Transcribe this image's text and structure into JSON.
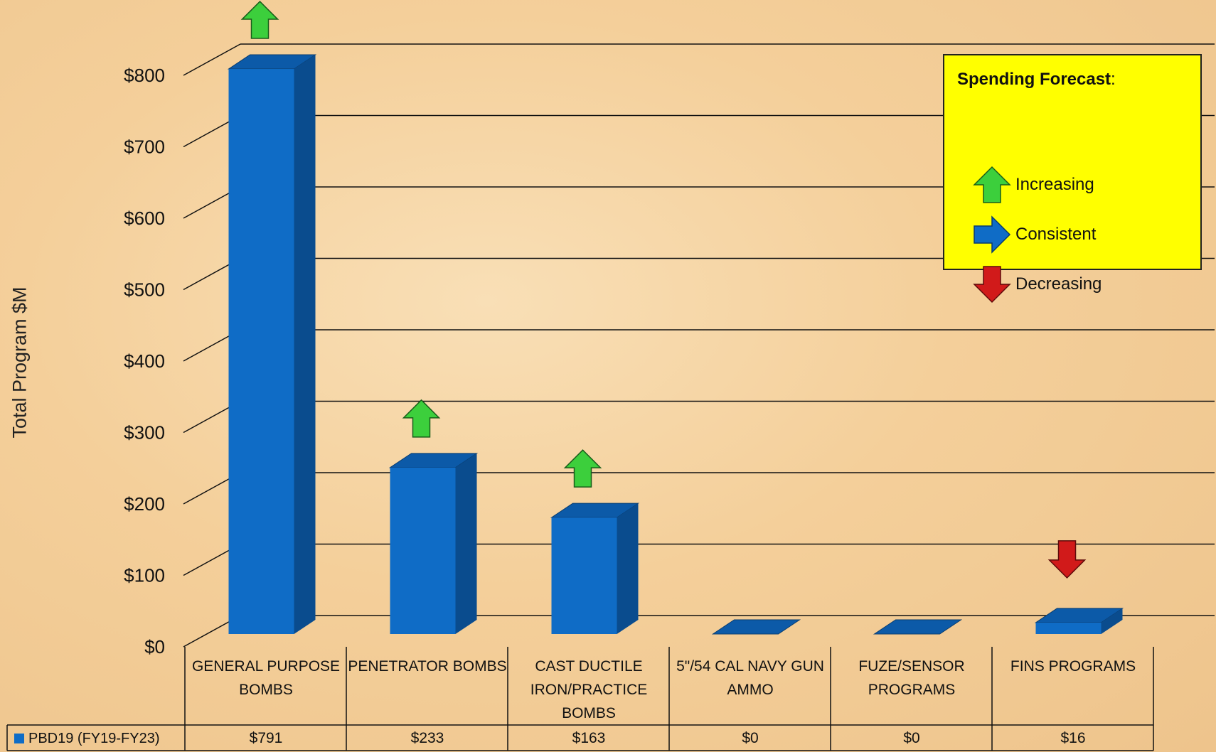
{
  "chart_data": {
    "type": "bar",
    "ylabel": "Total Program $M",
    "ylim": [
      0,
      800
    ],
    "y_ticks": [
      "$0",
      "$100",
      "$200",
      "$300",
      "$400",
      "$500",
      "$600",
      "$700",
      "$800"
    ],
    "grid": true,
    "categories": [
      "GENERAL PURPOSE BOMBS",
      "PENETRATOR BOMBS",
      "CAST DUCTILE IRON/PRACTICE BOMBS",
      "5\"/54 CAL NAVY GUN AMMO",
      "FUZE/SENSOR PROGRAMS",
      "FINS PROGRAMS"
    ],
    "series": [
      {
        "name": "PBD19 (FY19-FY23)",
        "values": [
          791,
          233,
          163,
          0,
          0,
          16
        ],
        "labels": [
          "$791",
          "$233",
          "$163",
          "$0",
          "$0",
          "$16"
        ],
        "color": "#0f6cc6"
      }
    ],
    "trends": [
      "increasing",
      "increasing",
      "increasing",
      null,
      null,
      "decreasing"
    ]
  },
  "legend": {
    "title": "Spending Forecast",
    "colon": ":",
    "items": [
      {
        "label": "Increasing",
        "icon": "green-up-arrow-icon",
        "color": "#3ccf3c"
      },
      {
        "label": "Consistent",
        "icon": "blue-right-arrow-icon",
        "color": "#0f6cc6"
      },
      {
        "label": "Decreasing",
        "icon": "red-down-arrow-icon",
        "color": "#d11a1a"
      }
    ]
  },
  "colors": {
    "bar_front": "#0f6cc6",
    "bar_side": "#0a4c8e",
    "bar_top": "#0c5aa8",
    "legend_bg": "#ffff00",
    "increase": "#3ccf3c",
    "decrease": "#d11a1a"
  }
}
